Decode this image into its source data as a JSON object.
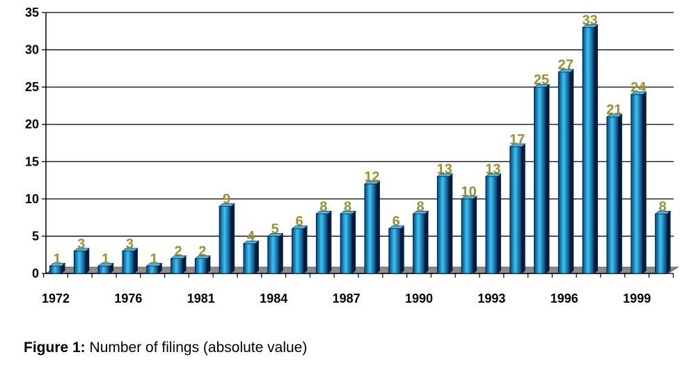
{
  "chart_data": {
    "type": "bar",
    "ylim": [
      0,
      35
    ],
    "yticks": [
      0,
      5,
      10,
      15,
      20,
      25,
      30,
      35
    ],
    "grid": true,
    "bar_color": "#1a7fc0",
    "label_color": "#9b8f2e",
    "values": [
      1,
      3,
      1,
      3,
      1,
      2,
      2,
      9,
      4,
      5,
      6,
      8,
      8,
      12,
      6,
      8,
      13,
      10,
      13,
      17,
      25,
      27,
      33,
      21,
      24,
      8
    ],
    "xtick_labels": [
      {
        "index": 0,
        "label": "1972"
      },
      {
        "index": 3,
        "label": "1976"
      },
      {
        "index": 6,
        "label": "1981"
      },
      {
        "index": 9,
        "label": "1984"
      },
      {
        "index": 12,
        "label": "1987"
      },
      {
        "index": 15,
        "label": "1990"
      },
      {
        "index": 18,
        "label": "1993"
      },
      {
        "index": 21,
        "label": "1996"
      },
      {
        "index": 24,
        "label": "1999"
      }
    ]
  },
  "caption": {
    "prefix": "Figure 1:",
    "text": " Number of filings (absolute value)"
  }
}
